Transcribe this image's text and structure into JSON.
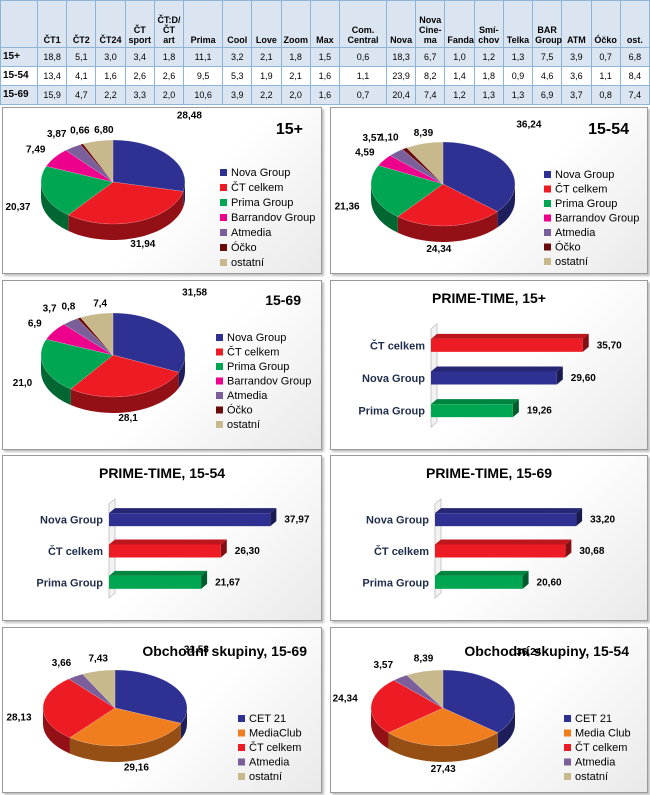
{
  "table": {
    "headers": [
      "",
      "ČT1",
      "ČT2",
      "ČT24",
      "ČT sport",
      "ČT:D/ČT art",
      "Prima",
      "Cool",
      "Love",
      "Zoom",
      "Max",
      "Com. Central",
      "Nova",
      "Nova Cine-ma",
      "Fanda",
      "Smí-chov",
      "Telka",
      "BAR Group",
      "ATM",
      "Óčko",
      "ost."
    ],
    "rows": [
      [
        "15+",
        "18,8",
        "5,1",
        "3,0",
        "3,4",
        "1,8",
        "11,1",
        "3,2",
        "2,1",
        "1,8",
        "1,5",
        "0,6",
        "18,3",
        "6,7",
        "1,0",
        "1,2",
        "1,3",
        "7,5",
        "3,9",
        "0,7",
        "6,8"
      ],
      [
        "15-54",
        "13,4",
        "4,1",
        "1,6",
        "2,6",
        "2,6",
        "9,5",
        "5,3",
        "1,9",
        "2,1",
        "1,6",
        "1,1",
        "23,9",
        "8,2",
        "1,4",
        "1,8",
        "0,9",
        "4,6",
        "3,6",
        "1,1",
        "8,4"
      ],
      [
        "15-69",
        "15,9",
        "4,7",
        "2,2",
        "3,3",
        "2,0",
        "10,6",
        "3,9",
        "2,2",
        "2,0",
        "1,6",
        "0,7",
        "20,4",
        "7,4",
        "1,2",
        "1,3",
        "1,3",
        "6,9",
        "3,7",
        "0,8",
        "7,4"
      ]
    ]
  },
  "colors": {
    "Nova Group": "#2e3192",
    "ČT celkem": "#ed1c24",
    "Prima Group": "#00a651",
    "Barrandov Group": "#ec008c",
    "Atmedia": "#7b5f9a",
    "Óčko": "#6b0a0a",
    "ostatní": "#c8b98c",
    "CET 21": "#2e3192",
    "MediaClub": "#f07e1f",
    "Media Club": "#f07e1f"
  },
  "chart_data": [
    {
      "type": "pie",
      "title": "15+",
      "labels": [
        "Nova Group",
        "ČT celkem",
        "Prima Group",
        "Barrandov Group",
        "Atmedia",
        "Óčko",
        "ostatní"
      ],
      "values": [
        28.48,
        31.94,
        20.37,
        7.49,
        3.87,
        0.66,
        6.8
      ],
      "value_labels": [
        "28,48",
        "31,94",
        "20,37",
        "7,49",
        "3,87",
        "0,66",
        "6,80"
      ]
    },
    {
      "type": "pie",
      "title": "15-54",
      "labels": [
        "Nova Group",
        "ČT celkem",
        "Prima Group",
        "Barrandov Group",
        "Atmedia",
        "Óčko",
        "ostatní"
      ],
      "values": [
        36.24,
        24.34,
        21.36,
        4.59,
        3.57,
        1.1,
        8.39
      ],
      "value_labels": [
        "36,24",
        "24,34",
        "21,36",
        "4,59",
        "3,57",
        "1,10",
        "8,39"
      ]
    },
    {
      "type": "pie",
      "title": "15-69",
      "labels": [
        "Nova Group",
        "ČT celkem",
        "Prima Group",
        "Barrandov Group",
        "Atmedia",
        "Óčko",
        "ostatní"
      ],
      "values": [
        31.58,
        28.1,
        21.0,
        6.9,
        3.7,
        0.8,
        7.4
      ],
      "value_labels": [
        "31,58",
        "28,1",
        "21,0",
        "6,9",
        "3,7",
        "0,8",
        "7,4"
      ]
    },
    {
      "type": "bar",
      "title": "PRIME-TIME, 15+",
      "categories": [
        "ČT celkem",
        "Nova Group",
        "Prima Group"
      ],
      "values": [
        35.7,
        29.6,
        19.26
      ],
      "value_labels": [
        "35,70",
        "29,60",
        "19,26"
      ],
      "xlim": [
        0,
        40
      ]
    },
    {
      "type": "bar",
      "title": "PRIME-TIME, 15-54",
      "categories": [
        "Nova Group",
        "ČT celkem",
        "Prima Group"
      ],
      "values": [
        37.97,
        26.3,
        21.67
      ],
      "value_labels": [
        "37,97",
        "26,30",
        "21,67"
      ],
      "xlim": [
        0,
        40
      ]
    },
    {
      "type": "bar",
      "title": "PRIME-TIME, 15-69",
      "categories": [
        "Nova Group",
        "ČT celkem",
        "Prima Group"
      ],
      "values": [
        33.2,
        30.68,
        20.6
      ],
      "value_labels": [
        "33,20",
        "30,68",
        "20,60"
      ],
      "xlim": [
        0,
        40
      ]
    },
    {
      "type": "pie",
      "title": "Obchodní skupiny, 15-69",
      "labels": [
        "CET 21",
        "MediaClub",
        "ČT celkem",
        "Atmedia",
        "ostatní"
      ],
      "values": [
        31.58,
        29.16,
        28.13,
        3.66,
        7.43
      ],
      "value_labels": [
        "31,58",
        "29,16",
        "28,13",
        "3,66",
        "7,43"
      ]
    },
    {
      "type": "pie",
      "title": "Obchodní skupiny, 15-54",
      "labels": [
        "CET 21",
        "Media Club",
        "ČT celkem",
        "Atmedia",
        "ostatní"
      ],
      "values": [
        36.24,
        27.43,
        24.34,
        3.57,
        8.39
      ],
      "value_labels": [
        "36,24",
        "27,43",
        "24,34",
        "3,57",
        "8,39"
      ]
    }
  ]
}
